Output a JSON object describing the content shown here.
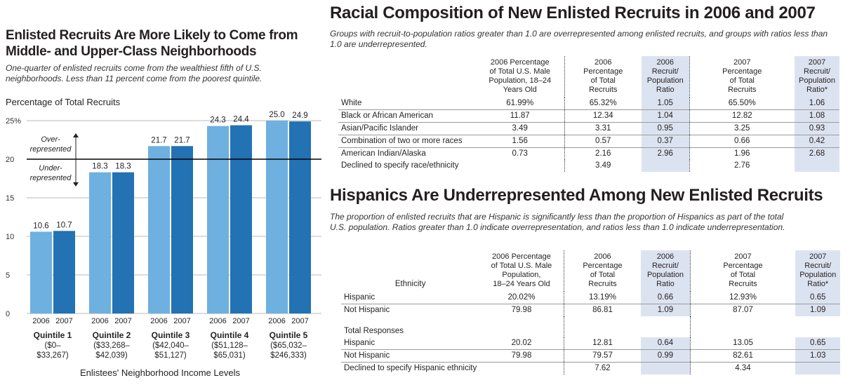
{
  "left": {
    "title_line1": "Enlisted Recruits Are More Likely to Come from",
    "title_line2": "Middle- and Upper-Class Neighborhoods",
    "subtitle_line1": "One-quarter of enlisted recruits come from the wealthiest fifth of U.S.",
    "subtitle_line2": "neighborhoods. Less than 11 percent come from the poorest quintile.",
    "ylabel": "Percentage of Total Recruits",
    "over_label_1": "Over-",
    "over_label_2": "represented",
    "under_label_1": "Under-",
    "under_label_2": "represented",
    "xlabel": "Enlistees' Neighborhood Income Levels"
  },
  "colors": {
    "bar2006": "#6eb0e0",
    "bar2007": "#2272b4",
    "grid": "#b9b9b9",
    "shade": "#dce3f0"
  },
  "chart_data": {
    "type": "bar",
    "title": "Enlisted Recruits Are More Likely to Come from Middle- and Upper-Class Neighborhoods",
    "ylabel": "Percentage of Total Recruits",
    "xlabel": "Enlistees' Neighborhood Income Levels",
    "ylim": [
      0,
      25
    ],
    "yticks": [
      "0",
      "5",
      "10",
      "15",
      "20",
      "25%"
    ],
    "reference_line": 20,
    "categories": [
      {
        "name": "Quintile 1",
        "range1": "($0–",
        "range2": "$33,267)"
      },
      {
        "name": "Quintile 2",
        "range1": "($33,268–",
        "range2": "$42,039)"
      },
      {
        "name": "Quintile 3",
        "range1": "($42,040–",
        "range2": "$51,127)"
      },
      {
        "name": "Quintile 4",
        "range1": "($51,128–",
        "range2": "$65,031)"
      },
      {
        "name": "Quintile 5",
        "range1": "($65,032–",
        "range2": "$246,333)"
      }
    ],
    "series": [
      {
        "name": "2006",
        "values": [
          10.6,
          18.3,
          21.7,
          24.3,
          25.0
        ],
        "labels": [
          "10.6",
          "18.3",
          "21.7",
          "24.3",
          "25.0"
        ]
      },
      {
        "name": "2007",
        "values": [
          10.7,
          18.3,
          21.7,
          24.4,
          24.9
        ],
        "labels": [
          "10.7",
          "18.3",
          "21.7",
          "24.4",
          "24.9"
        ]
      }
    ]
  },
  "race": {
    "title": "Racial Composition of New Enlisted Recruits in 2006 and 2007",
    "subtitle_line1": "Groups with recruit-to-population ratios greater than 1.0 are overrepresented among enlisted recruits, and groups with ratios less than",
    "subtitle_line2": "1.0 are underrepresented.",
    "headers": {
      "h1": [
        "2006 Percentage",
        "of Total U.S. Male",
        "Population, 18–24",
        "Years Old"
      ],
      "h2": [
        "2006",
        "Percentage",
        "of Total",
        "Recruits"
      ],
      "h3": [
        "2006",
        "Recruit/",
        "Population",
        "Ratio"
      ],
      "h4": [
        "2007",
        "Percentage",
        "of Total",
        "Recruits"
      ],
      "h5": [
        "2007",
        "Recruit/",
        "Population",
        "Ratio*"
      ]
    },
    "rows": [
      [
        "White",
        "61.99%",
        "65.32%",
        "1.05",
        "65.50%",
        "1.06"
      ],
      [
        "Black or African American",
        "11.87",
        "12.34",
        "1.04",
        "12.82",
        "1.08"
      ],
      [
        "Asian/Pacific Islander",
        "3.49",
        "3.31",
        "0.95",
        "3.25",
        "0.93"
      ],
      [
        "Combination of two or more races",
        "1.56",
        "0.57",
        "0.37",
        "0.66",
        "0.42"
      ],
      [
        "American Indian/Alaska",
        "0.73",
        "2.16",
        "2.96",
        "1.96",
        "2.68"
      ],
      [
        "Declined to specify race/ethnicity",
        "",
        "3.49",
        "",
        "2.76",
        ""
      ]
    ]
  },
  "hisp": {
    "title": "Hispanics Are Underrepresented Among New Enlisted Recruits",
    "subtitle_line1": "The proportion of enlisted recruits that are Hispanic is significantly less than the proportion of Hispanics as part of the total",
    "subtitle_line2": "U.S. population. Ratios greater than 1.0 indicate overrepresentation, and ratios less than 1.0 indicate underrepresentation.",
    "headers": {
      "h0": "Ethnicity",
      "h1": [
        "2006 Percentage",
        "of Total U.S. Male",
        "Population,",
        "18–24 Years Old"
      ],
      "h2": [
        "2006",
        "Percentage",
        "of Total",
        "Recruits"
      ],
      "h3": [
        "2006",
        "Recruit/",
        "Population",
        "Ratio"
      ],
      "h4": [
        "2007",
        "Percentage",
        "of Total",
        "Recruits"
      ],
      "h5": [
        "2007",
        "Recruit/",
        "Population",
        "Ratio*"
      ]
    },
    "rows_a": [
      [
        "Hispanic",
        "20.02%",
        "13.19%",
        "0.66",
        "12.93%",
        "0.65"
      ],
      [
        "Not Hispanic",
        "79.98",
        "86.81",
        "1.09",
        "87.07",
        "1.09"
      ]
    ],
    "section_label": "Total Responses",
    "rows_b": [
      [
        "Hispanic",
        "20.02",
        "12.81",
        "0.64",
        "13.05",
        "0.65"
      ],
      [
        "Not Hispanic",
        "79.98",
        "79.57",
        "0.99",
        "82.61",
        "1.03"
      ],
      [
        "Declined to specify Hispanic ethnicity",
        "",
        "7.62",
        "",
        "4.34",
        ""
      ]
    ]
  }
}
